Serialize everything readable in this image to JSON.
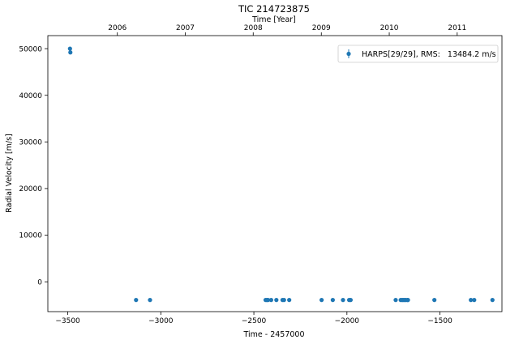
{
  "chart_data": {
    "type": "scatter",
    "title": "TIC 214723875",
    "xlabel": "Time - 2457000",
    "ylabel": "Radial Velocity [m/s]",
    "top_xlabel": "Time [Year]",
    "xlim": [
      -3607,
      -1167
    ],
    "ylim": [
      -6400,
      52800
    ],
    "xticks": [
      -3500,
      -3000,
      -2500,
      -2000,
      -1500
    ],
    "yticks": [
      0,
      10000,
      20000,
      30000,
      40000,
      50000
    ],
    "top_ticks": [
      {
        "label": "2006",
        "x": -3233.5
      },
      {
        "label": "2007",
        "x": -2868.5
      },
      {
        "label": "2008",
        "x": -2503.5
      },
      {
        "label": "2009",
        "x": -2137.5
      },
      {
        "label": "2010",
        "x": -1772.5
      },
      {
        "label": "2011",
        "x": -1407.5
      }
    ],
    "grid": false,
    "legend_position": "top-right",
    "color": "#1f77b4",
    "series": [
      {
        "name": "HARPS[29/29], RMS:   13484.2 m/s",
        "x": [
          -3488,
          -3486,
          -3133,
          -3058,
          -2437,
          -2430,
          -2424,
          -2407,
          -2379,
          -2346,
          -2338,
          -2310,
          -2136,
          -2076,
          -2021,
          -1988,
          -1980,
          -1738,
          -1711,
          -1703,
          -1697,
          -1690,
          -1684,
          -1675,
          -1672,
          -1530,
          -1334,
          -1316,
          -1218
        ],
        "y": [
          50000,
          49200,
          -3900,
          -3900,
          -3900,
          -3900,
          -3900,
          -3900,
          -3900,
          -3900,
          -3900,
          -3900,
          -3900,
          -3900,
          -3900,
          -3900,
          -3900,
          -3900,
          -3900,
          -3900,
          -3900,
          -3900,
          -3900,
          -3900,
          -3900,
          -3900,
          -3900,
          -3900,
          -3900
        ]
      }
    ]
  }
}
